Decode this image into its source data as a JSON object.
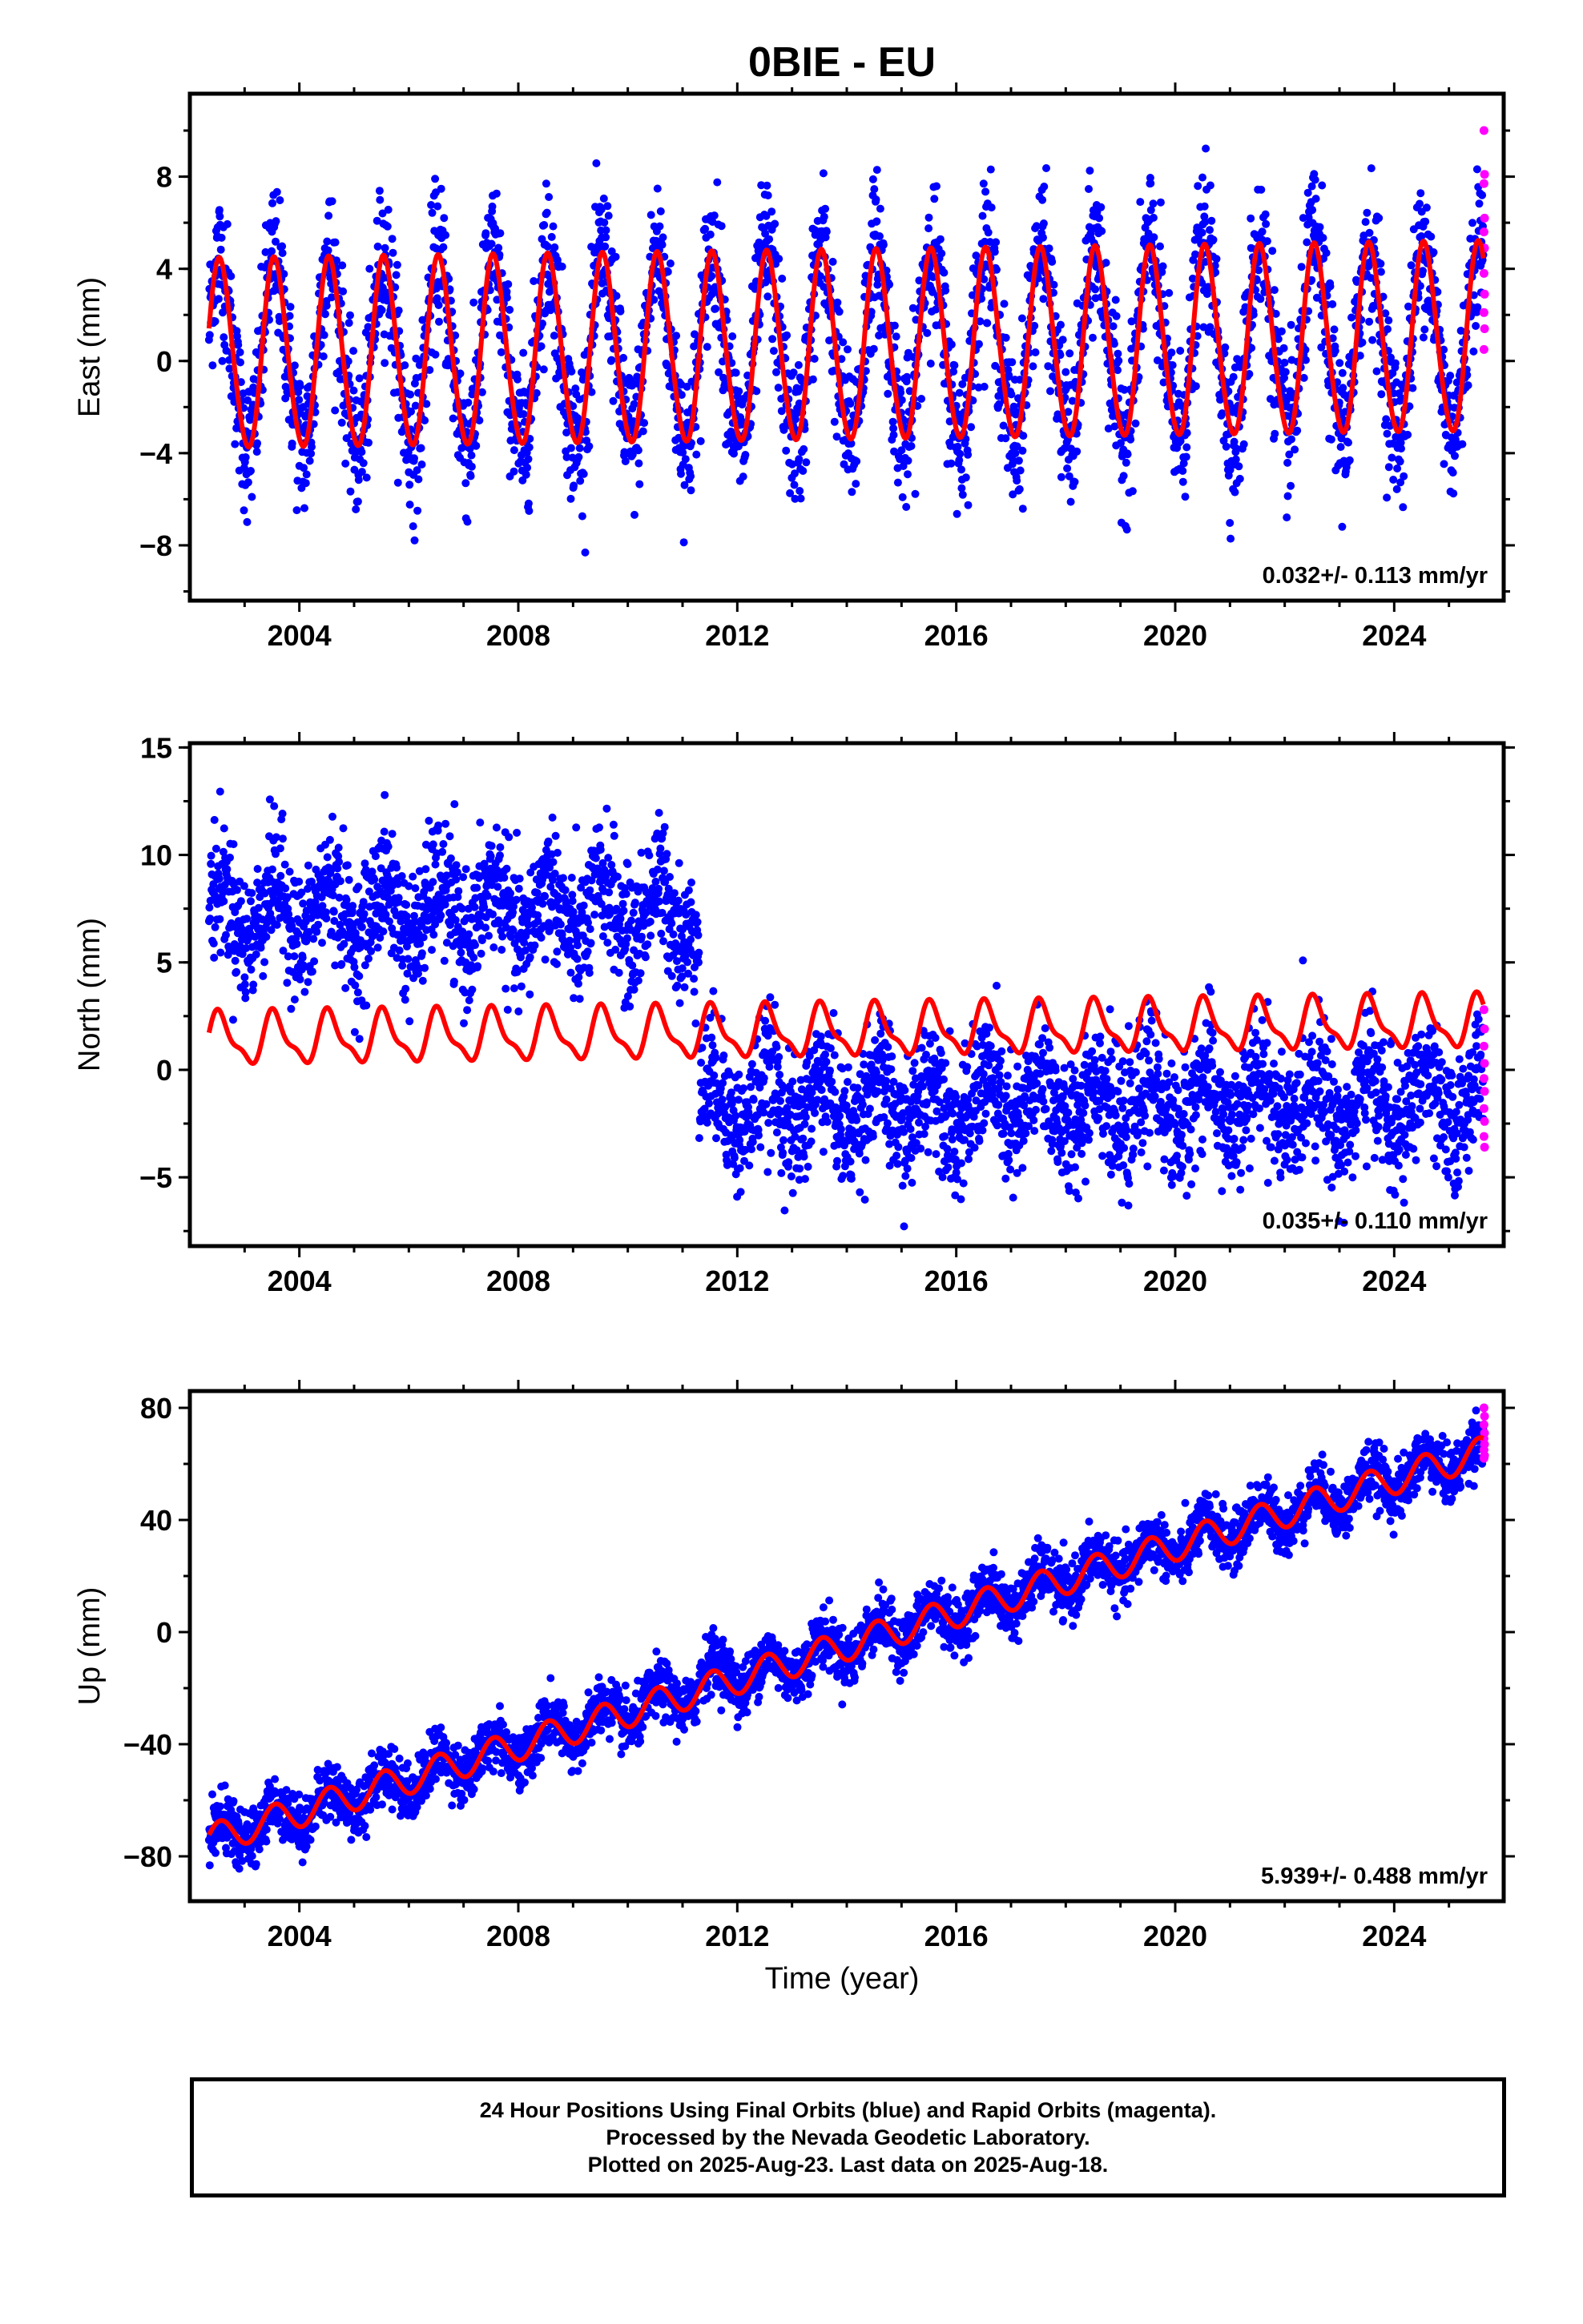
{
  "chart_data": {
    "title": "0BIE - EU",
    "type": "scatter",
    "xlabel": "Time (year)",
    "colors": {
      "final_orbits": "#0000ff",
      "rapid_orbits": "#ff00ff",
      "model": "#ff0000"
    },
    "xlim": [
      2002.0,
      2026.0
    ],
    "xticks": [
      "2004",
      "2008",
      "2012",
      "2016",
      "2020",
      "2024"
    ],
    "panels": [
      {
        "ylabel": "East (mm)",
        "ylim": [
          -10.4,
          11.6
        ],
        "yticks": [
          "−8",
          "−4",
          "0",
          "4",
          "8"
        ],
        "rate_text": "0.032+/- 0.113 mm/yr",
        "model": {
          "offset": 0.2,
          "amplitude": 4.1,
          "semi_annual": 0.3,
          "slope": 0.032,
          "offsets": []
        },
        "data_noise": 1.6,
        "data_extent_years": [
          2002.35,
          2025.63
        ],
        "rapid_values": [
          10.0,
          8.1,
          7.7,
          6.2,
          5.6,
          4.9,
          3.8,
          2.9,
          2.1,
          1.4,
          0.5
        ]
      },
      {
        "ylabel": "North (mm)",
        "ylim": [
          -8.2,
          15.2
        ],
        "yticks": [
          "−5",
          "0",
          "5",
          "10",
          "15"
        ],
        "rate_text": "0.035+/- 0.110 mm/yr",
        "model": {
          "offset": 1.4,
          "amplitude": 1.1,
          "semi_annual": 0.4,
          "slope": 0.035,
          "offsets": []
        },
        "data_noise": 1.5,
        "data_extent_years": [
          2002.35,
          2025.63
        ],
        "data_steps": [
          {
            "until": 2011.3,
            "level": 7.3
          },
          {
            "until": 2025.7,
            "level": -1.6
          }
        ],
        "rapid_values": [
          2.8,
          1.9,
          1.1,
          0.3,
          -0.4,
          -1.0,
          -1.8,
          -2.4,
          -3.1,
          -3.6
        ]
      },
      {
        "ylabel": "Up (mm)",
        "ylim": [
          -96,
          86
        ],
        "yticks": [
          "−80",
          "−40",
          "0",
          "40",
          "80"
        ],
        "rate_text": "5.939+/- 0.488 mm/yr",
        "model": {
          "offset": -74,
          "amplitude": 5.5,
          "semi_annual": 0.0,
          "slope": 5.939,
          "offsets": []
        },
        "data_noise": 5.0,
        "data_extent_years": [
          2002.35,
          2025.63
        ],
        "rapid_values": [
          80,
          77,
          74,
          71,
          69,
          67,
          65,
          63,
          62
        ]
      }
    ],
    "footer": [
      "24 Hour Positions Using Final Orbits (blue) and Rapid Orbits (magenta).",
      "Processed by the Nevada Geodetic Laboratory.",
      "Plotted on 2025-Aug-23. Last data on 2025-Aug-18."
    ]
  }
}
